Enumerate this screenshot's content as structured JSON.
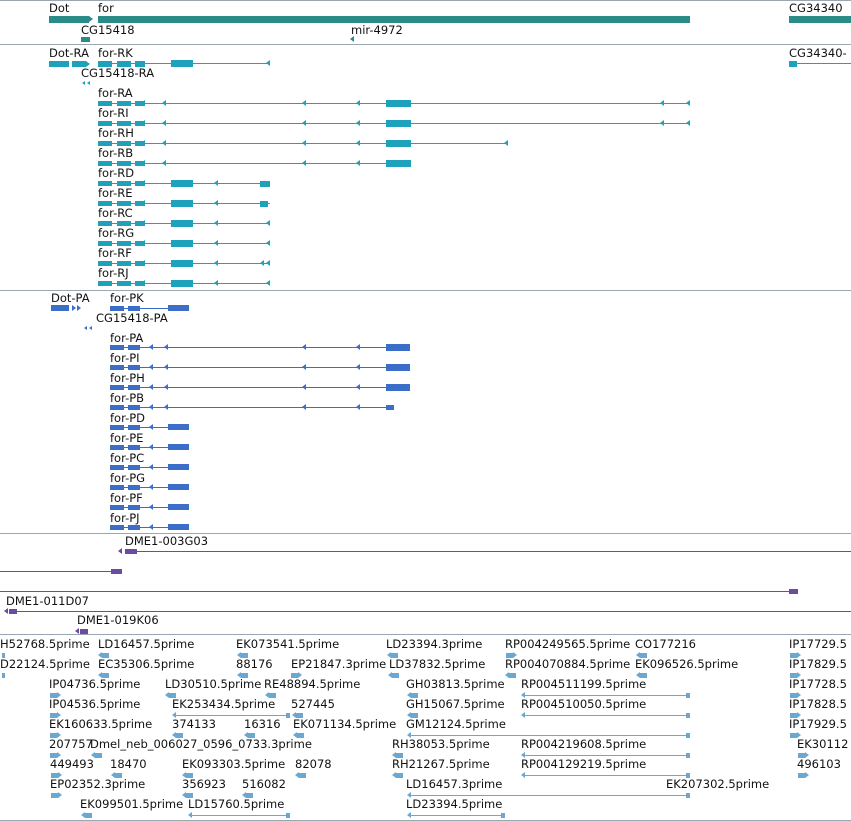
{
  "colors": {
    "gene": "#2a8b87",
    "transcript_fly": "#1ea2bb",
    "transcript_prot": "#3b6ec9",
    "clone": "#6b4c9e",
    "est": "#6aa8d2",
    "separator": "#9aa7b2"
  },
  "tracks": {
    "genes": [
      {
        "label": "Dot"
      },
      {
        "label": "for"
      },
      {
        "label": "CG34340"
      },
      {
        "label": "CG15418"
      },
      {
        "label": "mir-4972"
      }
    ],
    "transcripts": [
      {
        "label": "Dot-RA"
      },
      {
        "label": "for-RK"
      },
      {
        "label": "CG34340-"
      },
      {
        "label": "CG15418-RA"
      },
      {
        "label": "for-RA"
      },
      {
        "label": "for-RI"
      },
      {
        "label": "for-RH"
      },
      {
        "label": "for-RB"
      },
      {
        "label": "for-RD"
      },
      {
        "label": "for-RE"
      },
      {
        "label": "for-RC"
      },
      {
        "label": "for-RG"
      },
      {
        "label": "for-RF"
      },
      {
        "label": "for-RJ"
      }
    ],
    "proteins": [
      {
        "label": "Dot-PA"
      },
      {
        "label": "for-PK"
      },
      {
        "label": "CG15418-PA"
      },
      {
        "label": "for-PA"
      },
      {
        "label": "for-PI"
      },
      {
        "label": "for-PH"
      },
      {
        "label": "for-PB"
      },
      {
        "label": "for-PD"
      },
      {
        "label": "for-PE"
      },
      {
        "label": "for-PC"
      },
      {
        "label": "for-PG"
      },
      {
        "label": "for-PF"
      },
      {
        "label": "for-PJ"
      }
    ],
    "clones": [
      {
        "label": "DME1-003G03"
      },
      {
        "label": "DME1-011D07"
      },
      {
        "label": "DME1-019K06"
      }
    ],
    "ests": [
      {
        "label": "H52768.5prime"
      },
      {
        "label": "LD16457.5prime"
      },
      {
        "label": "EK073541.5prime"
      },
      {
        "label": "LD23394.3prime"
      },
      {
        "label": "RP004249565.5prime"
      },
      {
        "label": "CO177216"
      },
      {
        "label": "IP17729.5"
      },
      {
        "label": "D22124.5prime"
      },
      {
        "label": "EC35306.5prime"
      },
      {
        "label": "88176"
      },
      {
        "label": "EP21847.3prime"
      },
      {
        "label": "LD37832.5prime"
      },
      {
        "label": "RP004070884.5prime"
      },
      {
        "label": "EK096526.5prime"
      },
      {
        "label": "IP17829.5"
      },
      {
        "label": "IP04736.5prime"
      },
      {
        "label": "LD30510.5prime"
      },
      {
        "label": "RE48894.5prime"
      },
      {
        "label": "GH03813.5prime"
      },
      {
        "label": "RP004511199.5prime"
      },
      {
        "label": "IP17728.5"
      },
      {
        "label": "IP04536.5prime"
      },
      {
        "label": "EK253434.5prime"
      },
      {
        "label": "527445"
      },
      {
        "label": "GH15067.5prime"
      },
      {
        "label": "RP004510050.5prime"
      },
      {
        "label": "IP17828.5"
      },
      {
        "label": "EK160633.5prime"
      },
      {
        "label": "374133"
      },
      {
        "label": "16316"
      },
      {
        "label": "EK071134.5prime"
      },
      {
        "label": "GM12124.5prime"
      },
      {
        "label": "IP17929.5"
      },
      {
        "label": "207757"
      },
      {
        "label": "Dmel_neb_006027_0596_0733.3prime"
      },
      {
        "label": "RH38053.5prime"
      },
      {
        "label": "RP004219608.5prime"
      },
      {
        "label": "EK30112"
      },
      {
        "label": "449493"
      },
      {
        "label": "18470"
      },
      {
        "label": "EK093303.5prime"
      },
      {
        "label": "82078"
      },
      {
        "label": "RH21267.5prime"
      },
      {
        "label": "RP004129219.5prime"
      },
      {
        "label": "496103"
      },
      {
        "label": "EP02352.3prime"
      },
      {
        "label": "356923"
      },
      {
        "label": "516082"
      },
      {
        "label": "LD16457.3prime"
      },
      {
        "label": "EK207302.5prime"
      },
      {
        "label": "EK099501.5prime"
      },
      {
        "label": "LD15760.5prime"
      },
      {
        "label": "LD23394.5prime"
      }
    ]
  }
}
